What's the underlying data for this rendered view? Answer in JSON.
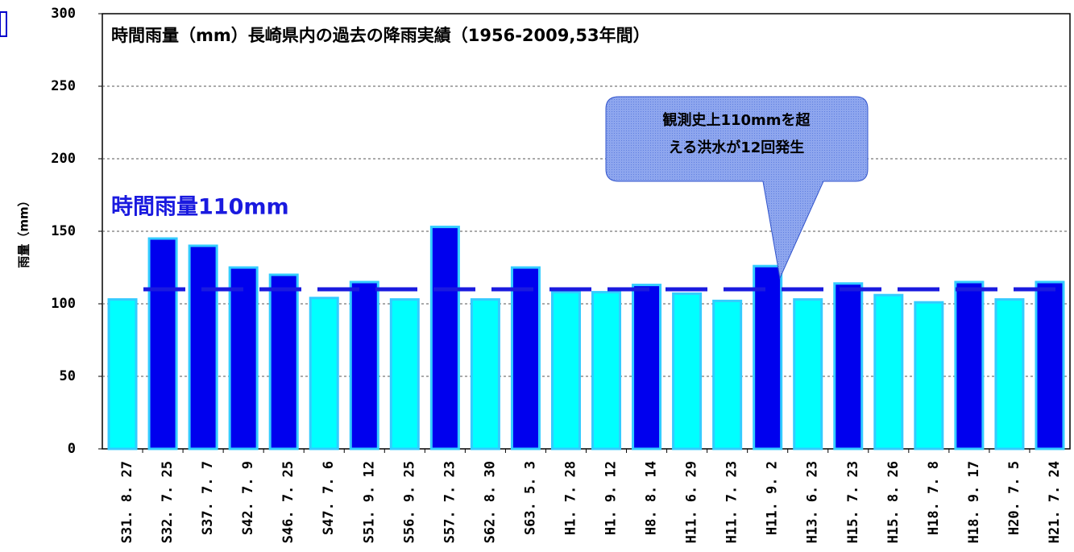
{
  "chart_data": {
    "type": "bar",
    "title": "時間雨量（mm）長崎県内の過去の降雨実績（1956-2009,53年間）",
    "y_label": "雨量（mm）",
    "categories": [
      "S31. 8. 27",
      "S32. 7. 25",
      "S37. 7. 7",
      "S42. 7. 9",
      "S46. 7. 25",
      "S47. 7. 6",
      "S51. 9. 12",
      "S56. 9. 25",
      "S57. 7. 23",
      "S62. 8. 30",
      "S63. 5. 3",
      "H1. 7. 28",
      "H1. 9. 12",
      "H8. 8. 14",
      "H11. 6. 29",
      "H11. 7. 23",
      "H11. 9. 2",
      "H13. 6. 23",
      "H15. 7. 23",
      "H15. 8. 26",
      "H18. 7. 8",
      "H18. 9. 17",
      "H20. 7. 5",
      "H21. 7. 24"
    ],
    "values": [
      103,
      145,
      140,
      125,
      120,
      104,
      115,
      103,
      153,
      103,
      125,
      108,
      108,
      113,
      107,
      102,
      126,
      103,
      114,
      106,
      101,
      115,
      103,
      115
    ],
    "colors": [
      "#00ffff",
      "#0000ee",
      "#0000ee",
      "#0000ee",
      "#0000ee",
      "#00ffff",
      "#0000ee",
      "#00ffff",
      "#0000ee",
      "#00ffff",
      "#0000ee",
      "#00ffff",
      "#00ffff",
      "#0000ee",
      "#00ffff",
      "#00ffff",
      "#0000ee",
      "#00ffff",
      "#0000ee",
      "#00ffff",
      "#00ffff",
      "#0000ee",
      "#00ffff",
      "#0000ee"
    ],
    "ylim": [
      0,
      300
    ],
    "yticks": [
      0,
      50,
      100,
      150,
      200,
      250,
      300
    ],
    "grid": true,
    "reference_line": {
      "value": 110,
      "label": "時間雨量110mm",
      "color": "#1a1adf"
    },
    "annotation": [
      "観測史上110mmを超",
      "える洪水が12回発生"
    ]
  }
}
